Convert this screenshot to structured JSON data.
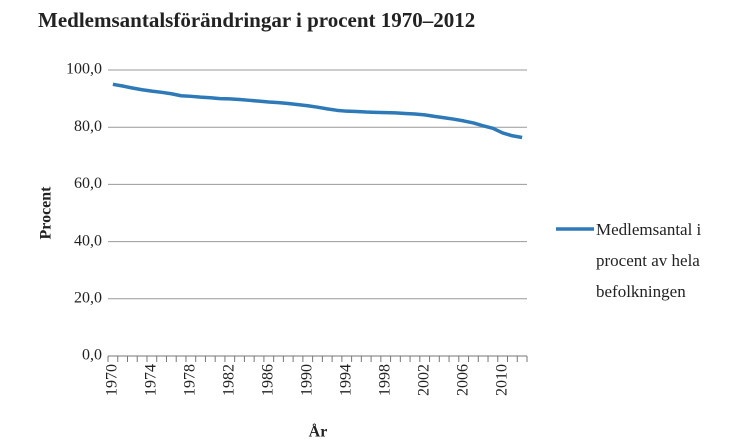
{
  "chart_data": {
    "type": "line",
    "title": "Medlemsantalsförändringar i procent 1970–2012",
    "xlabel": "År",
    "ylabel": "Procent",
    "x": [
      1970,
      1971,
      1972,
      1973,
      1974,
      1975,
      1976,
      1977,
      1978,
      1979,
      1980,
      1981,
      1982,
      1983,
      1984,
      1985,
      1986,
      1987,
      1988,
      1989,
      1990,
      1991,
      1992,
      1993,
      1994,
      1995,
      1996,
      1997,
      1998,
      1999,
      2000,
      2001,
      2002,
      2003,
      2004,
      2005,
      2006,
      2007,
      2008,
      2009,
      2010,
      2011,
      2012
    ],
    "series": [
      {
        "name": "Medlemsantal i procent av hela befolkningen",
        "color": "#2e7ab8",
        "values": [
          95.0,
          94.4,
          93.7,
          93.1,
          92.6,
          92.2,
          91.7,
          91.0,
          90.8,
          90.5,
          90.3,
          90.0,
          89.9,
          89.7,
          89.4,
          89.1,
          88.8,
          88.6,
          88.3,
          87.9,
          87.5,
          87.0,
          86.4,
          85.9,
          85.6,
          85.5,
          85.3,
          85.2,
          85.1,
          85.0,
          84.8,
          84.6,
          84.3,
          83.8,
          83.3,
          82.8,
          82.2,
          81.5,
          80.5,
          79.6,
          78.0,
          77.0,
          76.4
        ]
      }
    ],
    "xlim": [
      1969.5,
      2012.5
    ],
    "xticks": [
      1970,
      1974,
      1978,
      1982,
      1986,
      1990,
      1994,
      1998,
      2002,
      2006,
      2010
    ],
    "ylim": [
      0,
      100
    ],
    "yticks": [
      {
        "value": 0,
        "label": "0,0"
      },
      {
        "value": 20,
        "label": "20,0"
      },
      {
        "value": 40,
        "label": "40,0"
      },
      {
        "value": 60,
        "label": "60,0"
      },
      {
        "value": 80,
        "label": "80,0"
      },
      {
        "value": 100,
        "label": "100,0"
      }
    ],
    "grid": true,
    "legend": "right"
  }
}
